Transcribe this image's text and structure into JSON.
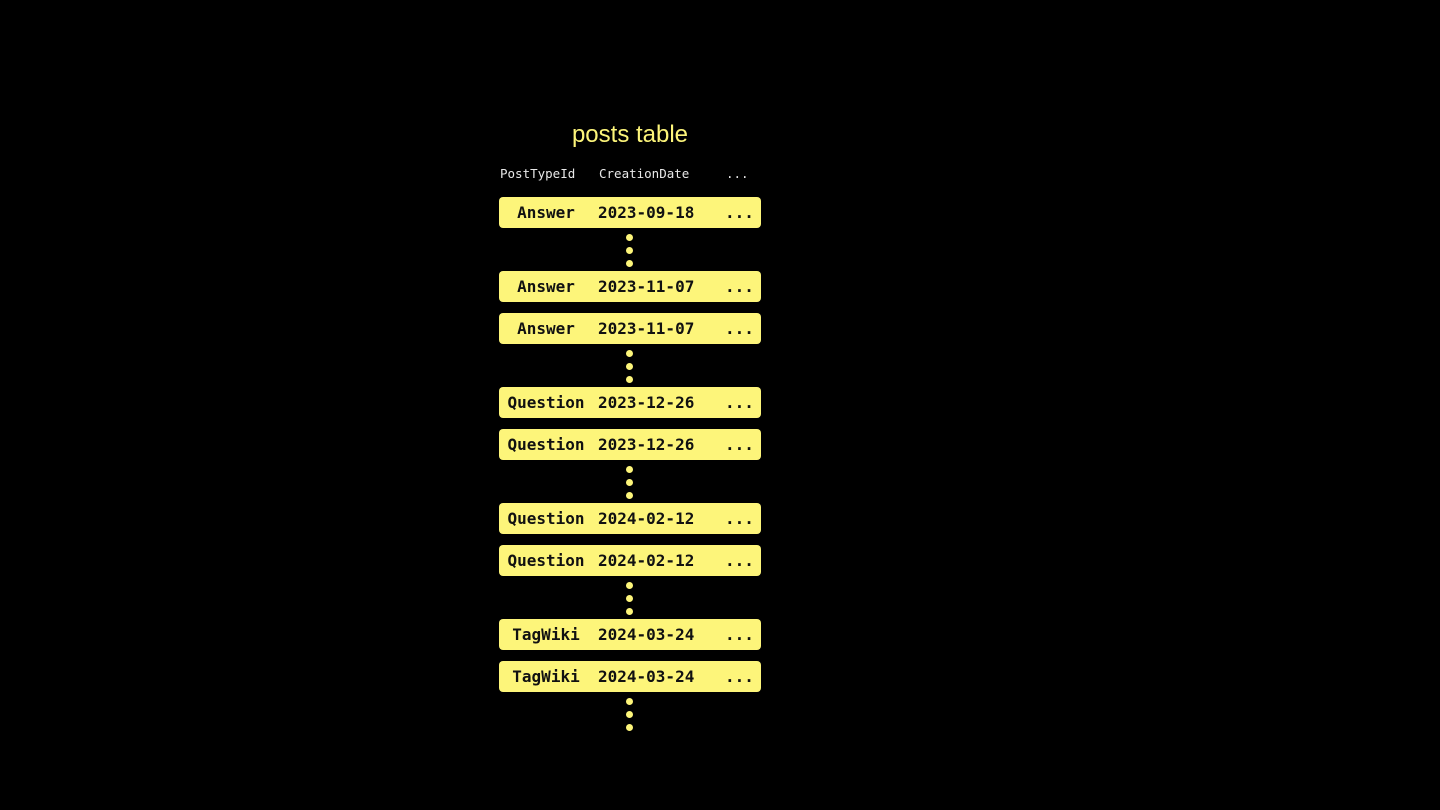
{
  "title": "posts table",
  "columns": [
    "PostTypeId",
    "CreationDate",
    "..."
  ],
  "colors": {
    "accent": "#fdf57a",
    "background": "#000000"
  },
  "groups": [
    [
      {
        "type": "Answer",
        "date": "2023-09-18",
        "more": "..."
      }
    ],
    [
      {
        "type": "Answer",
        "date": "2023-11-07",
        "more": "..."
      },
      {
        "type": "Answer",
        "date": "2023-11-07",
        "more": "..."
      }
    ],
    [
      {
        "type": "Question",
        "date": "2023-12-26",
        "more": "..."
      },
      {
        "type": "Question",
        "date": "2023-12-26",
        "more": "..."
      }
    ],
    [
      {
        "type": "Question",
        "date": "2024-02-12",
        "more": "..."
      },
      {
        "type": "Question",
        "date": "2024-02-12",
        "more": "..."
      }
    ],
    [
      {
        "type": "TagWiki",
        "date": "2024-03-24",
        "more": "..."
      },
      {
        "type": "TagWiki",
        "date": "2024-03-24",
        "more": "..."
      }
    ]
  ]
}
